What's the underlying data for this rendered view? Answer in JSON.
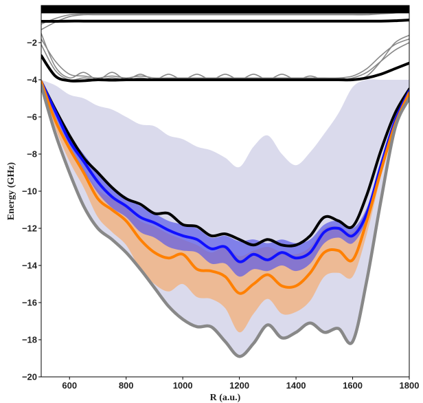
{
  "chart_data": {
    "type": "line",
    "title": "",
    "xlabel": "R (a.u.)",
    "ylabel": "Energy (GHz)",
    "xlim": [
      500,
      1800
    ],
    "ylim": [
      -20,
      0
    ],
    "xticks": [
      600,
      800,
      1000,
      1200,
      1400,
      1600,
      1800
    ],
    "yticks": [
      -20,
      -18,
      -16,
      -14,
      -12,
      -10,
      -8,
      -6,
      -4,
      -2
    ],
    "grid": false,
    "legend": "none",
    "colors": {
      "black": "#000000",
      "gray": "#888888",
      "blue": "#1010ff",
      "orange": "#ff8000",
      "lavender_band": "#d6d6ea",
      "orange_band": "#f0b486",
      "blue_band": "#5a5ae8"
    },
    "x": [
      500,
      550,
      600,
      650,
      700,
      750,
      800,
      850,
      900,
      950,
      1000,
      1050,
      1100,
      1150,
      1200,
      1250,
      1300,
      1350,
      1400,
      1450,
      1500,
      1550,
      1600,
      1650,
      1700,
      1750,
      1800
    ],
    "series": [
      {
        "style": "black-thick",
        "values": [
          -4.1,
          -5.6,
          -7.0,
          -8.2,
          -9.0,
          -9.8,
          -10.4,
          -10.7,
          -11.2,
          -11.2,
          -11.8,
          -11.9,
          -12.4,
          -12.3,
          -12.6,
          -12.9,
          -12.6,
          -12.9,
          -12.9,
          -12.4,
          -11.4,
          -11.6,
          -11.9,
          -10.2,
          -7.8,
          -5.8,
          -4.5
        ]
      },
      {
        "style": "blue-thick",
        "values": [
          -4.1,
          -5.7,
          -7.3,
          -8.4,
          -9.5,
          -10.3,
          -10.8,
          -11.4,
          -11.7,
          -12.1,
          -12.4,
          -12.6,
          -13.1,
          -13.0,
          -13.8,
          -13.4,
          -13.7,
          -13.3,
          -13.6,
          -13.3,
          -12.2,
          -12.0,
          -12.4,
          -11.2,
          -8.6,
          -6.2,
          -4.6
        ]
      },
      {
        "style": "orange-thick",
        "values": [
          -4.1,
          -6.2,
          -7.7,
          -9.0,
          -10.4,
          -11.0,
          -11.6,
          -12.6,
          -13.3,
          -13.6,
          -13.4,
          -14.2,
          -14.3,
          -14.6,
          -15.5,
          -15.0,
          -14.5,
          -15.1,
          -15.1,
          -14.4,
          -13.3,
          -13.2,
          -13.7,
          -11.6,
          -8.9,
          -6.4,
          -4.7
        ]
      },
      {
        "style": "gray-thick",
        "values": [
          -4.3,
          -6.9,
          -9.0,
          -10.8,
          -12.0,
          -12.6,
          -13.3,
          -14.2,
          -15.2,
          -16.2,
          -16.9,
          -17.3,
          -17.3,
          -18.1,
          -18.9,
          -18.2,
          -17.2,
          -17.9,
          -17.6,
          -17.1,
          -17.6,
          -17.4,
          -18.1,
          -14.8,
          -10.5,
          -6.6,
          -5.0
        ]
      },
      {
        "style": "black-thick",
        "values": [
          -2.7,
          -3.8,
          -4.05,
          -4.05,
          -4.0,
          -4.02,
          -4.0,
          -4.0,
          -4.0,
          -4.0,
          -4.0,
          -4.0,
          -4.0,
          -4.0,
          -4.0,
          -4.0,
          -4.0,
          -4.0,
          -4.0,
          -4.0,
          -4.0,
          -4.0,
          -4.0,
          -3.9,
          -3.7,
          -3.4,
          -3.1
        ]
      },
      {
        "style": "black-thick",
        "values": [
          -0.85,
          -0.85,
          -0.84,
          -0.84,
          -0.84,
          -0.84,
          -0.84,
          -0.84,
          -0.84,
          -0.84,
          -0.84,
          -0.84,
          -0.84,
          -0.84,
          -0.84,
          -0.84,
          -0.84,
          -0.84,
          -0.84,
          -0.84,
          -0.84,
          -0.84,
          -0.84,
          -0.84,
          -0.84,
          -0.82,
          -0.78
        ]
      },
      {
        "style": "black-band",
        "values": [
          -0.2,
          -0.2,
          -0.2,
          -0.2,
          -0.2,
          -0.2,
          -0.2,
          -0.2,
          -0.2,
          -0.2,
          -0.2,
          -0.2,
          -0.2,
          -0.2,
          -0.2,
          -0.2,
          -0.2,
          -0.2,
          -0.2,
          -0.2,
          -0.2,
          -0.2,
          -0.2,
          -0.2,
          -0.2,
          -0.2,
          -0.2
        ]
      }
    ],
    "bands": [
      {
        "style": "lavender",
        "upper": [
          -4.0,
          -4.3,
          -4.8,
          -5.0,
          -5.4,
          -5.6,
          -6.0,
          -6.4,
          -6.5,
          -7.0,
          -7.2,
          -7.6,
          -7.8,
          -8.2,
          -8.7,
          -7.6,
          -7.0,
          -8.0,
          -8.6,
          -7.9,
          -6.9,
          -5.8,
          -4.4,
          -4.0,
          -4.0,
          -4.0,
          -4.0
        ],
        "lower": [
          -4.3,
          -6.9,
          -9.0,
          -10.8,
          -12.0,
          -12.6,
          -13.3,
          -14.2,
          -15.2,
          -16.2,
          -16.9,
          -17.3,
          -17.3,
          -18.1,
          -18.9,
          -18.2,
          -17.2,
          -17.9,
          -17.6,
          -17.1,
          -17.6,
          -17.4,
          -18.1,
          -14.8,
          -10.5,
          -6.6,
          -5.0
        ]
      },
      {
        "style": "orange",
        "upper": [
          -4.1,
          -6.2,
          -7.6,
          -8.8,
          -9.9,
          -10.4,
          -10.9,
          -11.6,
          -11.9,
          -12.3,
          -12.6,
          -12.9,
          -13.3,
          -13.0,
          -13.5,
          -13.2,
          -13.0,
          -13.3,
          -13.4,
          -13.0,
          -12.0,
          -11.9,
          -12.2,
          -10.9,
          -8.5,
          -6.2,
          -4.6
        ],
        "lower": [
          -4.2,
          -6.6,
          -8.4,
          -9.8,
          -11.4,
          -12.2,
          -12.9,
          -14.2,
          -15.0,
          -15.4,
          -15.0,
          -15.7,
          -15.8,
          -16.3,
          -17.6,
          -16.6,
          -15.8,
          -16.6,
          -16.5,
          -15.9,
          -14.6,
          -14.4,
          -14.6,
          -12.3,
          -9.2,
          -6.6,
          -4.8
        ]
      },
      {
        "style": "blue",
        "upper": [
          -4.1,
          -5.5,
          -7.0,
          -8.0,
          -9.0,
          -9.8,
          -10.3,
          -10.8,
          -11.2,
          -11.6,
          -11.8,
          -12.0,
          -12.5,
          -12.4,
          -12.7,
          -12.6,
          -12.8,
          -12.6,
          -12.8,
          -12.6,
          -11.8,
          -11.6,
          -12.0,
          -10.9,
          -8.5,
          -6.1,
          -4.5
        ],
        "lower": [
          -4.2,
          -6.0,
          -7.7,
          -8.9,
          -10.1,
          -10.9,
          -11.4,
          -12.2,
          -12.5,
          -13.0,
          -13.2,
          -13.3,
          -13.9,
          -13.9,
          -14.6,
          -14.2,
          -14.3,
          -14.0,
          -14.3,
          -13.9,
          -12.8,
          -12.5,
          -12.8,
          -11.5,
          -8.8,
          -6.3,
          -4.7
        ]
      }
    ],
    "gray_thin_curves": [
      {
        "values": [
          -1.5,
          -3.3,
          -3.9,
          -3.6,
          -4.0,
          -3.6,
          -4.0,
          -3.7,
          -4.0,
          -3.7,
          -4.0,
          -3.7,
          -4.0,
          -3.7,
          -4.0,
          -3.7,
          -4.0,
          -3.7,
          -4.0,
          -3.8,
          -4.0,
          -3.9,
          -4.0,
          -3.8,
          -3.0,
          -2.0,
          -1.6
        ]
      },
      {
        "values": [
          -1.8,
          -3.0,
          -3.7,
          -3.8,
          -3.9,
          -3.8,
          -3.9,
          -3.8,
          -3.9,
          -3.9,
          -3.9,
          -3.9,
          -3.9,
          -3.9,
          -3.9,
          -3.9,
          -3.9,
          -3.9,
          -3.9,
          -3.9,
          -3.9,
          -3.9,
          -3.8,
          -3.4,
          -2.7,
          -2.1,
          -1.8
        ]
      },
      {
        "values": [
          -2.1,
          -3.5,
          -4.0,
          -3.9,
          -4.0,
          -3.9,
          -4.0,
          -3.9,
          -4.0,
          -3.9,
          -4.0,
          -3.9,
          -4.0,
          -3.9,
          -4.0,
          -3.9,
          -4.0,
          -3.9,
          -4.0,
          -3.95,
          -4.0,
          -4.0,
          -3.9,
          -3.6,
          -3.0,
          -2.4,
          -2.0
        ]
      },
      {
        "values": [
          -1.3,
          -0.9,
          -0.6,
          -0.5,
          -0.5,
          -0.5,
          -0.5,
          -0.5,
          -0.5,
          -0.5,
          -0.5,
          -0.5,
          -0.5,
          -0.5,
          -0.5,
          -0.5,
          -0.5,
          -0.5,
          -0.5,
          -0.5,
          -0.5,
          -0.5,
          -0.5,
          -0.5,
          -0.45,
          -0.4,
          -0.3
        ]
      },
      {
        "values": [
          -1.0,
          -0.7,
          -0.5,
          -0.45,
          -0.45,
          -0.45,
          -0.45,
          -0.45,
          -0.45,
          -0.45,
          -0.45,
          -0.45,
          -0.45,
          -0.45,
          -0.45,
          -0.45,
          -0.45,
          -0.45,
          -0.45,
          -0.45,
          -0.45,
          -0.45,
          -0.45,
          -0.45,
          -0.4,
          -0.35,
          -0.25
        ]
      }
    ]
  }
}
